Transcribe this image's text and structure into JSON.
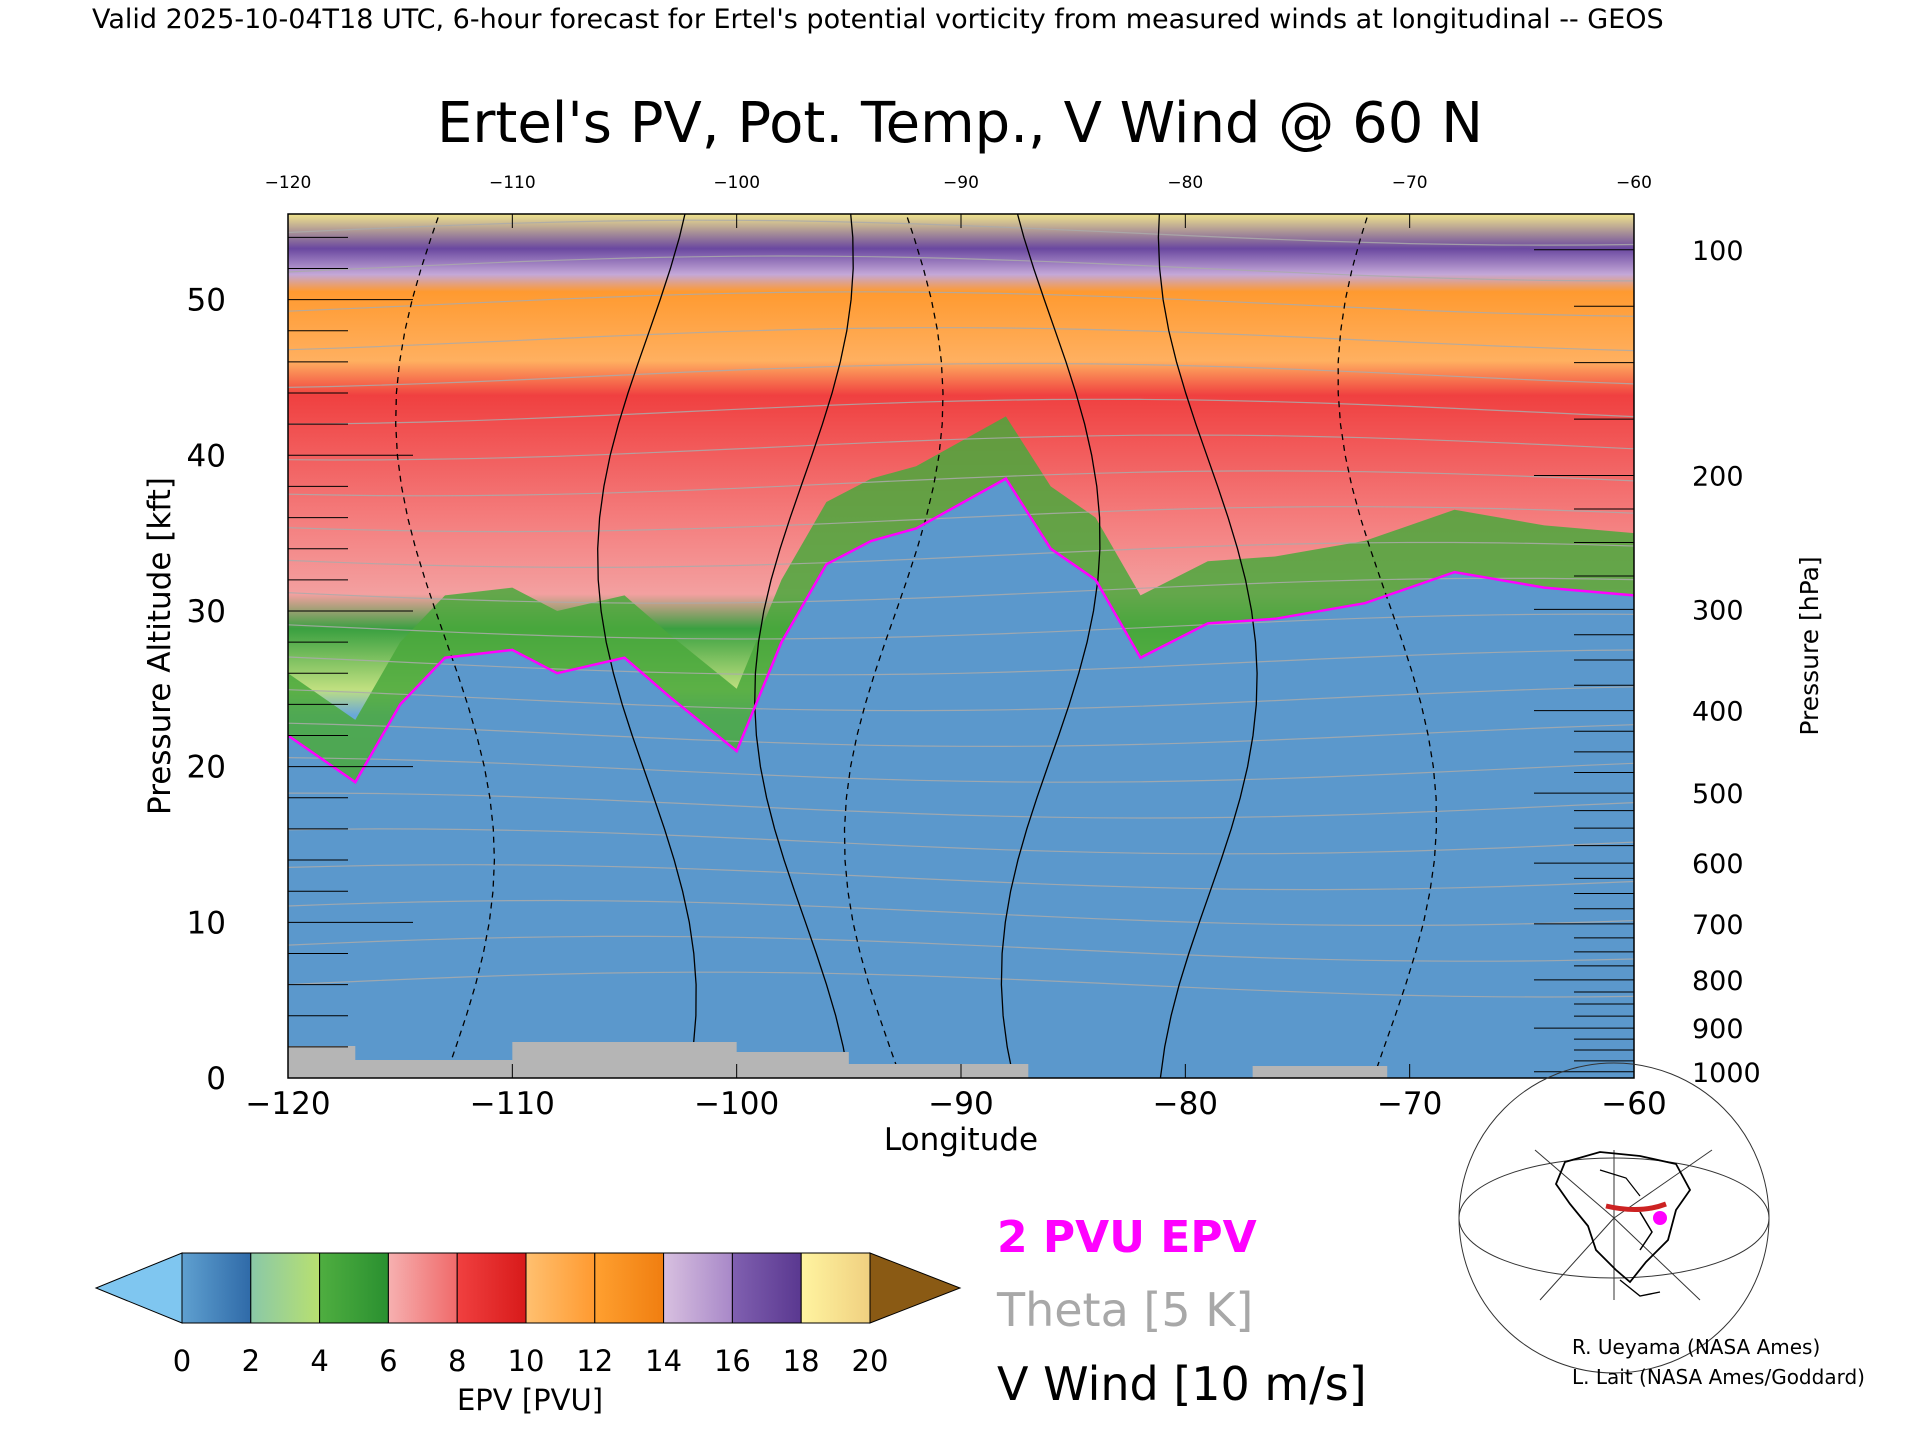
{
  "header": {
    "valid_line": "Valid 2025-10-04T18 UTC, 6-hour forecast for Ertel's potential vorticity from measured winds at longitudinal -- GEOS"
  },
  "chart_data": {
    "type": "heatmap",
    "title": "Ertel's PV, Pot. Temp., V Wind @ 60 N",
    "xlabel": "Longitude",
    "ylabel_left": "Pressure Altitude [kft]",
    "ylabel_right": "Pressure [hPa]",
    "xlim": [
      -120,
      -60
    ],
    "ylim": [
      0,
      55.5
    ],
    "x_ticks": [
      -120,
      -110,
      -100,
      -90,
      -80,
      -70,
      -60
    ],
    "x_tick_labels": [
      "−120",
      "−110",
      "−100",
      "−90",
      "−80",
      "−70",
      "−60"
    ],
    "left_ticks": [
      0,
      10,
      20,
      30,
      40,
      50
    ],
    "right_ticks": [
      {
        "hpa": "1000",
        "kft": 0.4
      },
      {
        "hpa": "900",
        "kft": 3.2
      },
      {
        "hpa": "800",
        "kft": 6.3
      },
      {
        "hpa": "700",
        "kft": 9.9
      },
      {
        "hpa": "600",
        "kft": 13.8
      },
      {
        "hpa": "500",
        "kft": 18.3
      },
      {
        "hpa": "400",
        "kft": 23.6
      },
      {
        "hpa": "300",
        "kft": 30.1
      },
      {
        "hpa": "200",
        "kft": 38.7
      },
      {
        "hpa": "100",
        "kft": 53.2
      }
    ],
    "tropopause_2pvu_kft": [
      {
        "lon": -120,
        "kft": 22
      },
      {
        "lon": -118,
        "kft": 20
      },
      {
        "lon": -117,
        "kft": 19
      },
      {
        "lon": -115,
        "kft": 24
      },
      {
        "lon": -113,
        "kft": 27
      },
      {
        "lon": -110,
        "kft": 27.5
      },
      {
        "lon": -108,
        "kft": 26
      },
      {
        "lon": -105,
        "kft": 27
      },
      {
        "lon": -103,
        "kft": 24.5
      },
      {
        "lon": -100,
        "kft": 21
      },
      {
        "lon": -98,
        "kft": 28
      },
      {
        "lon": -96,
        "kft": 33
      },
      {
        "lon": -94,
        "kft": 34.5
      },
      {
        "lon": -92,
        "kft": 35.3
      },
      {
        "lon": -88,
        "kft": 38.5
      },
      {
        "lon": -86,
        "kft": 34
      },
      {
        "lon": -84,
        "kft": 32
      },
      {
        "lon": -82,
        "kft": 27
      },
      {
        "lon": -79,
        "kft": 29.2
      },
      {
        "lon": -76,
        "kft": 29.5
      },
      {
        "lon": -72,
        "kft": 30.5
      },
      {
        "lon": -68,
        "kft": 32.5
      },
      {
        "lon": -64,
        "kft": 31.5
      },
      {
        "lon": -60,
        "kft": 31
      }
    ],
    "colorbar": {
      "label": "EPV [PVU]",
      "ticks": [
        "0",
        "2",
        "4",
        "6",
        "8",
        "10",
        "12",
        "14",
        "16",
        "18",
        "20"
      ],
      "under_color": "#7fc6f0",
      "over_color": "#8a5a14",
      "bins": [
        {
          "from": "#5fa0d0",
          "to": "#2f6aa8"
        },
        {
          "from": "#8ac8a8",
          "to": "#b8e070"
        },
        {
          "from": "#4fae40",
          "to": "#2a9030"
        },
        {
          "from": "#f6b0b0",
          "to": "#f06a6a"
        },
        {
          "from": "#f04040",
          "to": "#d81a1a"
        },
        {
          "from": "#ffc070",
          "to": "#ff9a30"
        },
        {
          "from": "#ffa030",
          "to": "#f07e10"
        },
        {
          "from": "#d8c0e0",
          "to": "#a888c8"
        },
        {
          "from": "#8060b0",
          "to": "#5a3890"
        },
        {
          "from": "#fff4a0",
          "to": "#f0d080"
        }
      ]
    },
    "legend": {
      "epv": "2 PVU EPV",
      "theta": "Theta [5 K]",
      "vwind": "V Wind [10 m/s]"
    },
    "colors": {
      "epv_line": "#ff00ff",
      "theta_line": "#aaaaaa",
      "vwind_line": "#000000",
      "terrain": "#b5b5b5"
    }
  },
  "inset_map": {
    "marker_color": "#ff00ff",
    "section_color": "#cc2222"
  },
  "credits": {
    "line1": "R. Ueyama (NASA Ames)",
    "line2": "L. Lait (NASA Ames/Goddard)"
  }
}
